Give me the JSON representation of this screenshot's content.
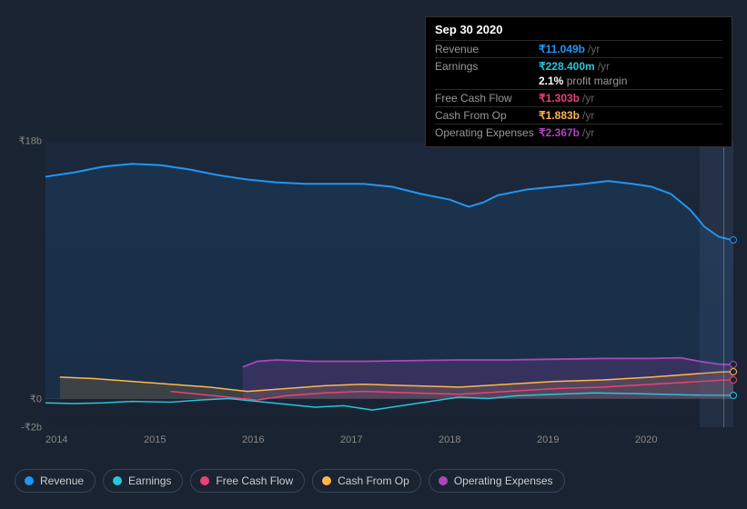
{
  "tooltip": {
    "date": "Sep 30 2020",
    "rows": [
      {
        "label": "Revenue",
        "value": "₹11.049b",
        "unit": "/yr",
        "color": "#2196f3"
      },
      {
        "label": "Earnings",
        "value": "₹228.400m",
        "unit": "/yr",
        "color": "#26c6da"
      },
      {
        "label": "Free Cash Flow",
        "value": "₹1.303b",
        "unit": "/yr",
        "color": "#ec407a"
      },
      {
        "label": "Cash From Op",
        "value": "₹1.883b",
        "unit": "/yr",
        "color": "#ffb74d"
      },
      {
        "label": "Operating Expenses",
        "value": "₹2.367b",
        "unit": "/yr",
        "color": "#ab47bc"
      }
    ],
    "margin_pct": "2.1%",
    "margin_label": "profit margin"
  },
  "chart": {
    "type": "line",
    "y_ticks": [
      {
        "label": "₹18b",
        "value": 18
      },
      {
        "label": "₹0",
        "value": 0
      },
      {
        "label": "-₹2b",
        "value": -2
      }
    ],
    "ylim": [
      -2,
      18
    ],
    "x_labels": [
      "2014",
      "2015",
      "2016",
      "2017",
      "2018",
      "2019",
      "2020"
    ],
    "xlim": [
      2013.7,
      2020.85
    ],
    "shade_from": 2020.5,
    "cursor_x": 2020.75,
    "background_color": "#1a2332",
    "grid_color": "#2a3545",
    "series": [
      {
        "name": "Revenue",
        "color": "#2196f3",
        "fill": "rgba(33,150,243,0.10)",
        "width": 2,
        "points": [
          [
            2013.7,
            15.5
          ],
          [
            2014.0,
            15.8
          ],
          [
            2014.3,
            16.2
          ],
          [
            2014.6,
            16.4
          ],
          [
            2014.9,
            16.3
          ],
          [
            2015.2,
            16.0
          ],
          [
            2015.5,
            15.6
          ],
          [
            2015.8,
            15.3
          ],
          [
            2016.1,
            15.1
          ],
          [
            2016.4,
            15.0
          ],
          [
            2016.7,
            15.0
          ],
          [
            2017.0,
            15.0
          ],
          [
            2017.3,
            14.8
          ],
          [
            2017.6,
            14.3
          ],
          [
            2017.9,
            13.9
          ],
          [
            2018.1,
            13.4
          ],
          [
            2018.25,
            13.7
          ],
          [
            2018.4,
            14.2
          ],
          [
            2018.7,
            14.6
          ],
          [
            2019.0,
            14.8
          ],
          [
            2019.3,
            15.0
          ],
          [
            2019.55,
            15.2
          ],
          [
            2019.8,
            15.0
          ],
          [
            2020.0,
            14.8
          ],
          [
            2020.2,
            14.3
          ],
          [
            2020.4,
            13.2
          ],
          [
            2020.55,
            12.0
          ],
          [
            2020.7,
            11.3
          ],
          [
            2020.85,
            11.05
          ]
        ]
      },
      {
        "name": "Operating Expenses",
        "color": "#ab47bc",
        "fill": "rgba(171,71,188,0.20)",
        "width": 1.8,
        "points": [
          [
            2015.75,
            2.2
          ],
          [
            2015.9,
            2.6
          ],
          [
            2016.1,
            2.7
          ],
          [
            2016.5,
            2.6
          ],
          [
            2017.0,
            2.6
          ],
          [
            2017.5,
            2.65
          ],
          [
            2018.0,
            2.7
          ],
          [
            2018.5,
            2.7
          ],
          [
            2019.0,
            2.75
          ],
          [
            2019.5,
            2.8
          ],
          [
            2020.0,
            2.8
          ],
          [
            2020.3,
            2.85
          ],
          [
            2020.5,
            2.6
          ],
          [
            2020.7,
            2.4
          ],
          [
            2020.85,
            2.37
          ]
        ]
      },
      {
        "name": "Cash From Op",
        "color": "#ffb74d",
        "fill": "rgba(255,183,77,0.15)",
        "width": 1.5,
        "points": [
          [
            2013.85,
            1.5
          ],
          [
            2014.2,
            1.4
          ],
          [
            2014.6,
            1.2
          ],
          [
            2015.0,
            1.0
          ],
          [
            2015.4,
            0.8
          ],
          [
            2015.8,
            0.5
          ],
          [
            2016.2,
            0.7
          ],
          [
            2016.6,
            0.9
          ],
          [
            2017.0,
            1.0
          ],
          [
            2017.5,
            0.9
          ],
          [
            2018.0,
            0.8
          ],
          [
            2018.5,
            1.0
          ],
          [
            2019.0,
            1.2
          ],
          [
            2019.5,
            1.3
          ],
          [
            2020.0,
            1.5
          ],
          [
            2020.4,
            1.7
          ],
          [
            2020.7,
            1.85
          ],
          [
            2020.85,
            1.88
          ]
        ]
      },
      {
        "name": "Free Cash Flow",
        "color": "#ec407a",
        "fill": "none",
        "width": 1.5,
        "points": [
          [
            2015.0,
            0.5
          ],
          [
            2015.3,
            0.3
          ],
          [
            2015.6,
            0.1
          ],
          [
            2015.9,
            -0.1
          ],
          [
            2016.2,
            0.2
          ],
          [
            2016.6,
            0.4
          ],
          [
            2017.0,
            0.5
          ],
          [
            2017.5,
            0.4
          ],
          [
            2018.0,
            0.3
          ],
          [
            2018.5,
            0.5
          ],
          [
            2019.0,
            0.7
          ],
          [
            2019.5,
            0.8
          ],
          [
            2020.0,
            1.0
          ],
          [
            2020.4,
            1.15
          ],
          [
            2020.7,
            1.28
          ],
          [
            2020.85,
            1.3
          ]
        ]
      },
      {
        "name": "Earnings",
        "color": "#26c6da",
        "fill": "none",
        "width": 1.5,
        "points": [
          [
            2013.7,
            -0.3
          ],
          [
            2014.0,
            -0.35
          ],
          [
            2014.3,
            -0.3
          ],
          [
            2014.6,
            -0.2
          ],
          [
            2015.0,
            -0.25
          ],
          [
            2015.3,
            -0.1
          ],
          [
            2015.6,
            0.0
          ],
          [
            2015.9,
            -0.2
          ],
          [
            2016.2,
            -0.4
          ],
          [
            2016.5,
            -0.6
          ],
          [
            2016.8,
            -0.5
          ],
          [
            2017.1,
            -0.8
          ],
          [
            2017.4,
            -0.5
          ],
          [
            2017.7,
            -0.2
          ],
          [
            2018.0,
            0.1
          ],
          [
            2018.3,
            0.0
          ],
          [
            2018.6,
            0.2
          ],
          [
            2019.0,
            0.3
          ],
          [
            2019.4,
            0.4
          ],
          [
            2019.8,
            0.35
          ],
          [
            2020.1,
            0.3
          ],
          [
            2020.4,
            0.25
          ],
          [
            2020.7,
            0.23
          ],
          [
            2020.85,
            0.23
          ]
        ]
      }
    ]
  },
  "legend": [
    {
      "label": "Revenue",
      "color": "#2196f3"
    },
    {
      "label": "Earnings",
      "color": "#26c6da"
    },
    {
      "label": "Free Cash Flow",
      "color": "#ec407a"
    },
    {
      "label": "Cash From Op",
      "color": "#ffb74d"
    },
    {
      "label": "Operating Expenses",
      "color": "#ab47bc"
    }
  ]
}
